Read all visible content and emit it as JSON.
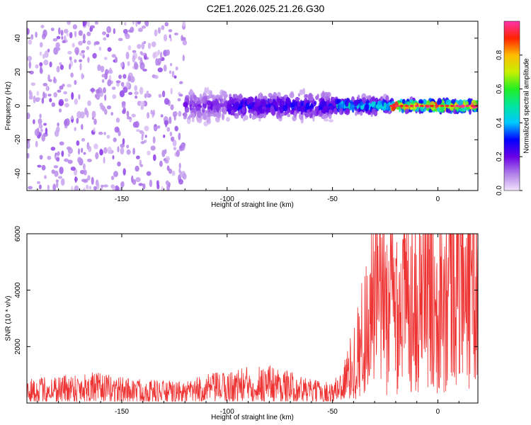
{
  "title": "C2E1.2026.025.21.26.G30",
  "colors": {
    "snr_line": "#ee3333",
    "axis": "#000000",
    "background": "#ffffff"
  },
  "chart_data": [
    {
      "type": "heatmap",
      "name": "spectrogram",
      "xlabel": "Height of straight line (km)",
      "ylabel": "Frequency (Hz)",
      "xlim": [
        -195,
        19
      ],
      "ylim": [
        -50,
        50
      ],
      "xticks": [
        -150,
        -100,
        -50,
        0
      ],
      "xtick_labels": [
        "-150",
        "-100",
        "-50",
        "0"
      ],
      "yticks": [
        -40,
        -20,
        0,
        20,
        40
      ],
      "ytick_labels": [
        "-40",
        "-20",
        "0",
        "20",
        "40"
      ],
      "description_series": {
        "signal_center_hz": 0,
        "band_segments": [
          {
            "x_from": -195,
            "x_to": -120,
            "amplitude": 0.12,
            "half_width_hz": 50
          },
          {
            "x_from": -120,
            "x_to": -100,
            "amplitude": 0.18,
            "half_width_hz": 6
          },
          {
            "x_from": -100,
            "x_to": -48,
            "amplitude": 0.28,
            "half_width_hz": 5
          },
          {
            "x_from": -48,
            "x_to": -22,
            "amplitude": 0.45,
            "half_width_hz": 3
          },
          {
            "x_from": -22,
            "x_to": 19,
            "amplitude": 0.95,
            "half_width_hz": 2
          }
        ]
      },
      "colorbar": {
        "label": "Normalized spectral amplitude",
        "range": [
          0.0,
          1.0
        ],
        "ticks": [
          0.0,
          0.2,
          0.4,
          0.6,
          0.8
        ],
        "tick_labels": [
          "0.0",
          "0.2",
          "0.4",
          "0.6",
          "0.8"
        ]
      }
    },
    {
      "type": "line",
      "name": "snr",
      "xlabel": "Height of straight line (km)",
      "ylabel": "SNR (10 * v/v)",
      "xlim": [
        -195,
        19
      ],
      "ylim": [
        0,
        6000
      ],
      "xticks": [
        -150,
        -100,
        -50,
        0
      ],
      "xtick_labels": [
        "-150",
        "-100",
        "-50",
        "0"
      ],
      "yticks": [
        2000,
        4000,
        6000
      ],
      "ytick_labels": [
        "2000",
        "4000",
        "6000"
      ],
      "series": [
        {
          "name": "SNR",
          "x": [
            -195,
            -180,
            -165,
            -150,
            -135,
            -120,
            -110,
            -100,
            -90,
            -80,
            -70,
            -60,
            -50,
            -45,
            -40,
            -35,
            -30,
            -25,
            -20,
            -15,
            -10,
            -5,
            0,
            5,
            10,
            15,
            19
          ],
          "y": [
            400,
            500,
            550,
            450,
            400,
            350,
            500,
            550,
            650,
            700,
            550,
            400,
            350,
            700,
            1400,
            2500,
            3700,
            3400,
            3600,
            3800,
            4100,
            4300,
            4200,
            4500,
            4700,
            5000,
            4600
          ]
        }
      ]
    }
  ]
}
